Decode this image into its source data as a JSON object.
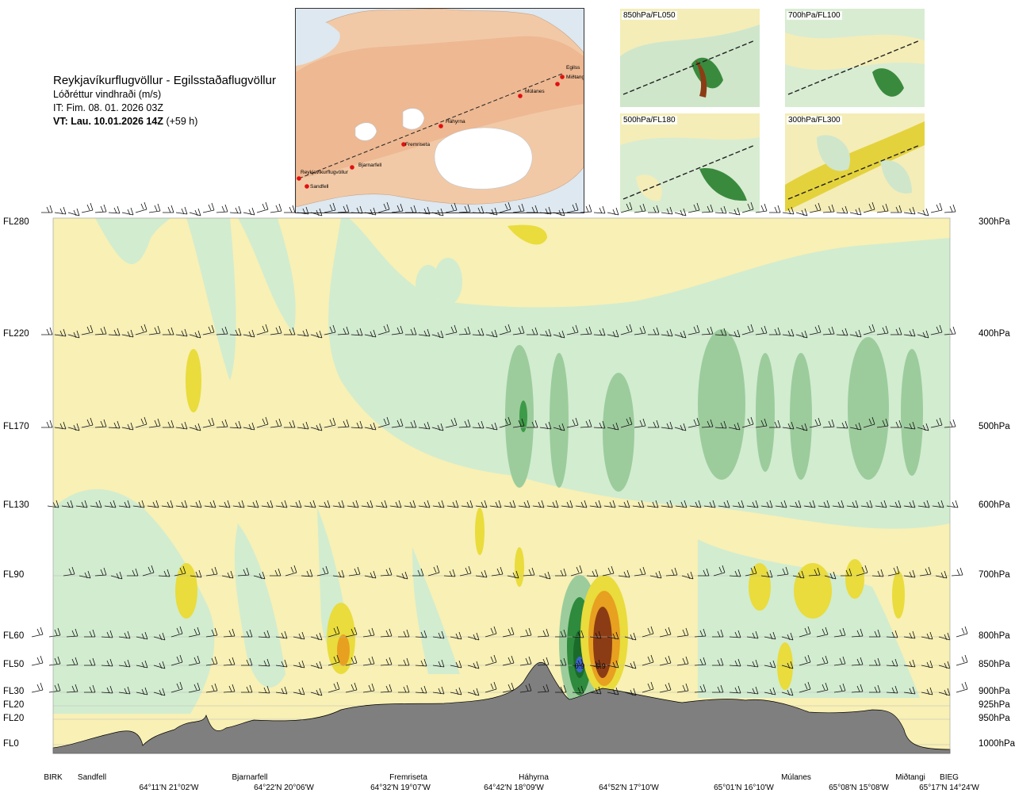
{
  "header": {
    "route": "Reykjavíkurflugvöllur - Egilsstaðaflugvöllur",
    "parameter": "Lóðréttur vindhraði (m/s)",
    "issue_time": "IT: Fim. 08. 01. 2026 03Z",
    "valid_prefix": "VT: Lau. 10.01.2026 14Z",
    "valid_offset": "(+59 h)"
  },
  "minimap": {
    "stations": [
      "Reykjavíkurflugvöllur",
      "Sandfell",
      "Bjarnarfell",
      "Fremriseta",
      "Háhyrna",
      "Múlanes",
      "Egilss",
      "Miðtangi"
    ]
  },
  "plan_maps": [
    {
      "label": "850hPa/FL050"
    },
    {
      "label": "700hPa/FL100"
    },
    {
      "label": "500hPa/FL180"
    },
    {
      "label": "300hPa/FL300"
    }
  ],
  "levels": [
    {
      "fl": "FL280",
      "hpa": "300hPa"
    },
    {
      "fl": "FL220",
      "hpa": "400hPa"
    },
    {
      "fl": "FL170",
      "hpa": "500hPa"
    },
    {
      "fl": "FL130",
      "hpa": "600hPa"
    },
    {
      "fl": "FL90",
      "hpa": "700hPa"
    },
    {
      "fl": "FL60",
      "hpa": "800hPa"
    },
    {
      "fl": "FL50",
      "hpa": "850hPa"
    },
    {
      "fl": "FL30",
      "hpa": "900hPa"
    },
    {
      "fl": "FL20",
      "hpa": "925hPa"
    },
    {
      "fl": "FL20",
      "hpa": "950hPa"
    },
    {
      "fl": "FL0",
      "hpa": "1000hPa"
    }
  ],
  "stations": [
    "BIRK",
    "Sandfell",
    "Bjarnarfell",
    "Fremriseta",
    "Háhyrna",
    "Múlanes",
    "Miðtangi",
    "BIEG"
  ],
  "coordinates": [
    "64°11'N 21°02'W",
    "64°22'N 20°06'W",
    "64°32'N 19°07'W",
    "64°42'N 18°09'W",
    "64°52'N 17°10'W",
    "65°01'N 16°10'W",
    "65°08'N 15°08'W",
    "65°17'N 14°24'W"
  ],
  "extreme_labels": [
    "0.9",
    "-0.9"
  ],
  "colors": {
    "pale_yellow": "#f8f0b4",
    "yellow": "#e9dc3c",
    "orange": "#e8a020",
    "brown": "#8c3c14",
    "pale_green": "#d2ecd0",
    "green": "#9ccc9c",
    "dark_green": "#2e8a3c",
    "blue": "#3c64c8",
    "terrain": "#808080"
  }
}
